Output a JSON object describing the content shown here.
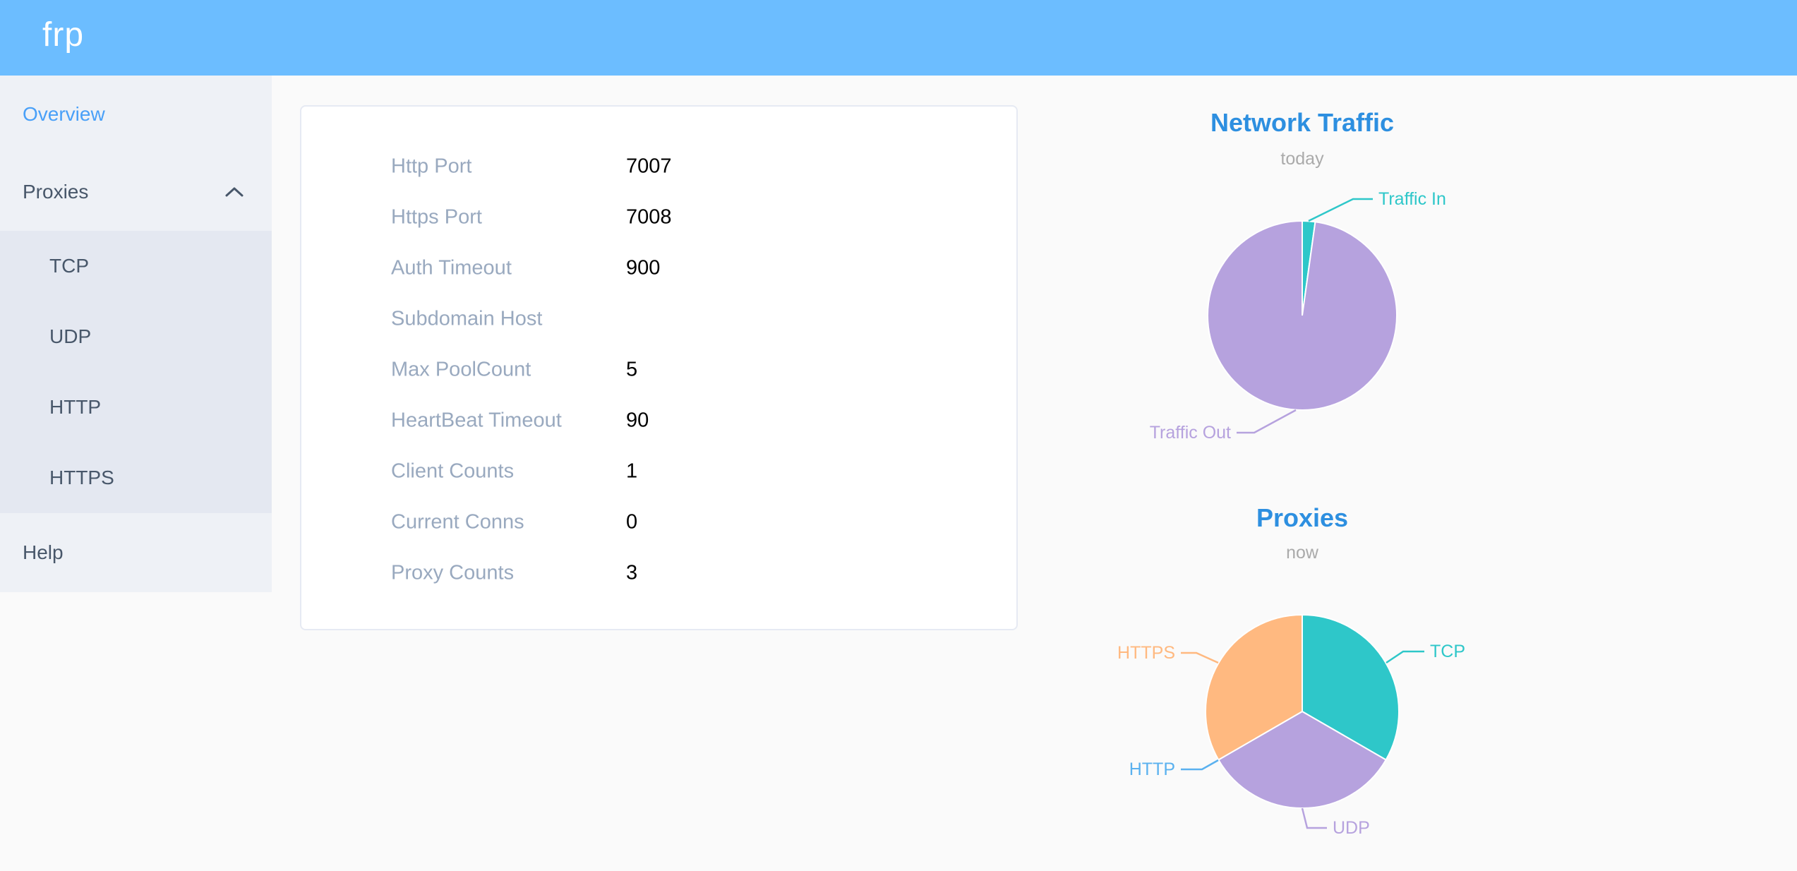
{
  "header": {
    "logo": "frp"
  },
  "sidebar": {
    "items": [
      {
        "label": "Overview",
        "active": true
      },
      {
        "label": "Proxies",
        "expanded": true
      },
      {
        "label": "Help"
      }
    ],
    "proxies_children": [
      {
        "label": "TCP"
      },
      {
        "label": "UDP"
      },
      {
        "label": "HTTP"
      },
      {
        "label": "HTTPS"
      }
    ]
  },
  "overview_card": {
    "rows": [
      {
        "label": "Http Port",
        "value": "7007"
      },
      {
        "label": "Https Port",
        "value": "7008"
      },
      {
        "label": "Auth Timeout",
        "value": "900"
      },
      {
        "label": "Subdomain Host",
        "value": ""
      },
      {
        "label": "Max PoolCount",
        "value": "5"
      },
      {
        "label": "HeartBeat Timeout",
        "value": "90"
      },
      {
        "label": "Client Counts",
        "value": "1"
      },
      {
        "label": "Current Conns",
        "value": "0"
      },
      {
        "label": "Proxy Counts",
        "value": "3"
      }
    ]
  },
  "chart_data": [
    {
      "type": "pie",
      "title": "Network Traffic",
      "subtitle": "today",
      "unit": "%",
      "label_position": "outside",
      "series": [
        {
          "name": "Traffic In",
          "value": 2.2,
          "color": "#2ec7c9"
        },
        {
          "name": "Traffic Out",
          "value": 97.8,
          "color": "#b6a2de"
        }
      ]
    },
    {
      "type": "pie",
      "title": "Proxies",
      "subtitle": "now",
      "unit": "proxies",
      "label_position": "outside",
      "series": [
        {
          "name": "TCP",
          "value": 1,
          "color": "#2ec7c9"
        },
        {
          "name": "UDP",
          "value": 1,
          "color": "#b6a2de"
        },
        {
          "name": "HTTP",
          "value": 0,
          "color": "#5ab1ef"
        },
        {
          "name": "HTTPS",
          "value": 1,
          "color": "#ffb980"
        }
      ]
    }
  ]
}
